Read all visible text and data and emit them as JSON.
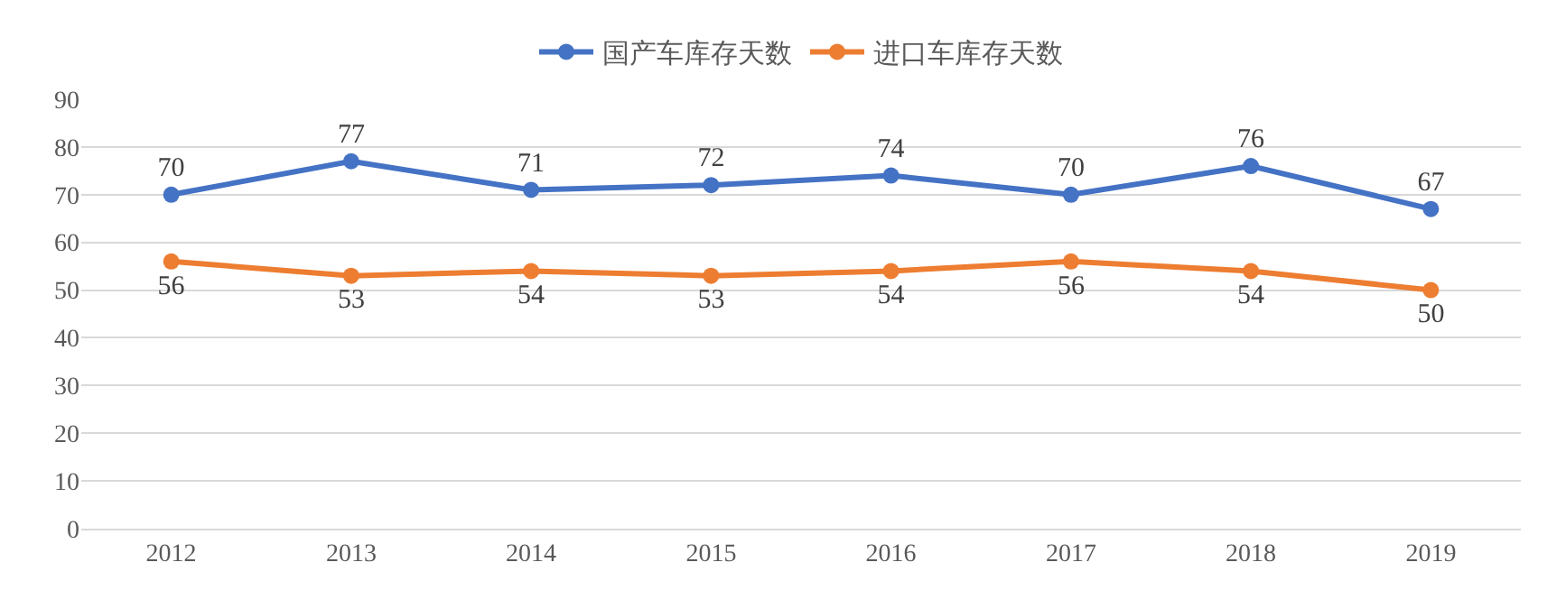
{
  "chart_data": {
    "type": "line",
    "categories": [
      "2012",
      "2013",
      "2014",
      "2015",
      "2016",
      "2017",
      "2018",
      "2019"
    ],
    "series": [
      {
        "name": "国产车库存天数",
        "color": "#4472c4",
        "values": [
          70,
          77,
          71,
          72,
          74,
          70,
          76,
          67
        ]
      },
      {
        "name": "进口车库存天数",
        "color": "#ed7d31",
        "values": [
          56,
          53,
          54,
          53,
          54,
          56,
          54,
          50
        ]
      }
    ],
    "ylim": [
      0,
      90
    ],
    "yticks": [
      0,
      10,
      20,
      30,
      40,
      50,
      60,
      70,
      80,
      90
    ],
    "grid": "y",
    "legend": "top",
    "marker": "circle",
    "line_style": "solid",
    "data_labels": true
  }
}
